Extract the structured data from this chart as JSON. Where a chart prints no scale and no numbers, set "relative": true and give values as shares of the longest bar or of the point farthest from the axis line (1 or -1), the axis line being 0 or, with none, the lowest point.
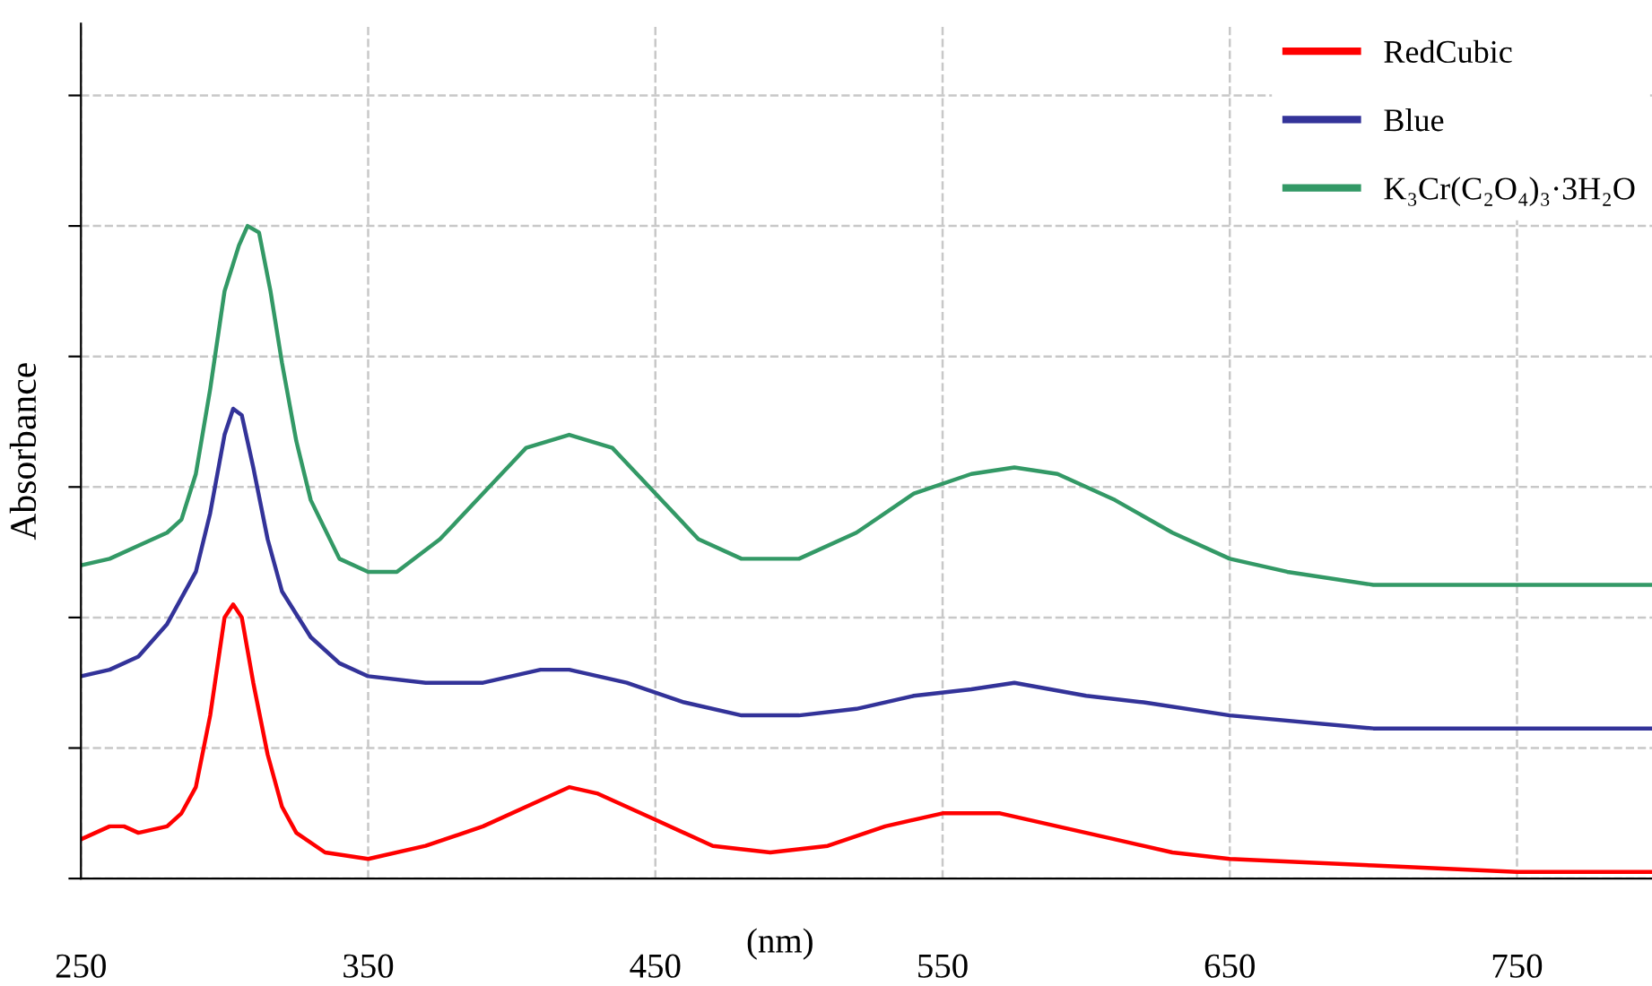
{
  "chart_data": {
    "type": "line",
    "relative": true,
    "xlabel": "(nm)",
    "ylabel": "Absorbance",
    "xlim": [
      250,
      797
    ],
    "xticks": [
      250,
      350,
      450,
      550,
      650,
      750
    ],
    "grid": true,
    "legend": "top right",
    "marker": "none",
    "line_style": "solid",
    "series": [
      {
        "name": "RedCubic",
        "color": "#ff0000",
        "x": [
          250,
          260,
          265,
          270,
          280,
          285,
          290,
          295,
          300,
          303,
          306,
          310,
          315,
          320,
          325,
          335,
          350,
          370,
          390,
          410,
          420,
          430,
          450,
          470,
          490,
          510,
          530,
          550,
          570,
          590,
          610,
          630,
          650,
          700,
          750,
          797
        ],
        "values": [
          0.06,
          0.08,
          0.08,
          0.07,
          0.08,
          0.1,
          0.14,
          0.25,
          0.4,
          0.42,
          0.4,
          0.3,
          0.19,
          0.11,
          0.07,
          0.04,
          0.03,
          0.05,
          0.08,
          0.12,
          0.14,
          0.13,
          0.09,
          0.05,
          0.04,
          0.05,
          0.08,
          0.1,
          0.1,
          0.08,
          0.06,
          0.04,
          0.03,
          0.02,
          0.01,
          0.01
        ]
      },
      {
        "name": "Blue",
        "color": "#333399",
        "x": [
          250,
          260,
          270,
          280,
          290,
          295,
          300,
          303,
          306,
          310,
          315,
          320,
          330,
          340,
          350,
          370,
          390,
          410,
          420,
          440,
          460,
          480,
          500,
          520,
          540,
          560,
          575,
          600,
          620,
          650,
          700,
          750,
          797
        ],
        "values": [
          0.31,
          0.32,
          0.34,
          0.39,
          0.47,
          0.56,
          0.68,
          0.72,
          0.71,
          0.63,
          0.52,
          0.44,
          0.37,
          0.33,
          0.31,
          0.3,
          0.3,
          0.32,
          0.32,
          0.3,
          0.27,
          0.25,
          0.25,
          0.26,
          0.28,
          0.29,
          0.3,
          0.28,
          0.27,
          0.25,
          0.23,
          0.23,
          0.23
        ]
      },
      {
        "name": "K₃Cr(C₂O₄)₃·3H₂O",
        "color": "#339966",
        "x": [
          250,
          260,
          270,
          280,
          285,
          290,
          295,
          300,
          305,
          308,
          312,
          316,
          320,
          325,
          330,
          340,
          350,
          360,
          375,
          390,
          405,
          420,
          435,
          450,
          465,
          480,
          500,
          520,
          540,
          560,
          575,
          590,
          610,
          630,
          650,
          670,
          700,
          750,
          797
        ],
        "values": [
          0.48,
          0.49,
          0.51,
          0.53,
          0.55,
          0.62,
          0.75,
          0.9,
          0.97,
          1.0,
          0.99,
          0.9,
          0.79,
          0.67,
          0.58,
          0.49,
          0.47,
          0.47,
          0.52,
          0.59,
          0.66,
          0.68,
          0.66,
          0.59,
          0.52,
          0.49,
          0.49,
          0.53,
          0.59,
          0.62,
          0.63,
          0.62,
          0.58,
          0.53,
          0.49,
          0.47,
          0.45,
          0.45,
          0.45
        ]
      }
    ]
  }
}
